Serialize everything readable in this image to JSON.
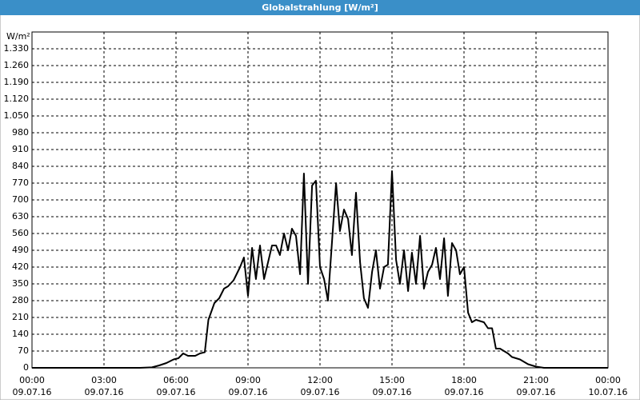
{
  "chart_data": {
    "type": "line",
    "title": "Globalstrahlung [W/m²]",
    "y_label": "W/m²",
    "series": [
      {
        "name": "Globalstrahlung",
        "color": "#000000",
        "x": [
          0,
          4.5,
          5.0,
          5.3,
          5.6,
          5.9,
          6.1,
          6.3,
          6.5,
          6.8,
          7.0,
          7.2,
          7.35,
          7.6,
          7.8,
          8.0,
          8.17,
          8.4,
          8.67,
          8.83,
          9.0,
          9.17,
          9.33,
          9.5,
          9.67,
          10.0,
          10.17,
          10.33,
          10.5,
          10.67,
          10.83,
          11.0,
          11.17,
          11.33,
          11.5,
          11.67,
          11.83,
          12.0,
          12.17,
          12.33,
          12.67,
          12.83,
          13.0,
          13.17,
          13.33,
          13.5,
          13.67,
          13.83,
          14.0,
          14.17,
          14.33,
          14.5,
          14.67,
          14.83,
          15.0,
          15.17,
          15.33,
          15.5,
          15.67,
          15.83,
          16.0,
          16.17,
          16.33,
          16.5,
          16.67,
          16.83,
          17.0,
          17.17,
          17.33,
          17.5,
          17.67,
          17.83,
          18.0,
          18.17,
          18.33,
          18.5,
          18.83,
          19.0,
          19.17,
          19.33,
          19.5,
          19.83,
          20.0,
          20.33,
          20.67,
          21.0,
          21.33,
          24
        ],
        "values": [
          0,
          0,
          2,
          10,
          20,
          35,
          40,
          60,
          50,
          50,
          60,
          65,
          200,
          270,
          290,
          330,
          340,
          365,
          420,
          460,
          300,
          500,
          370,
          510,
          370,
          510,
          510,
          470,
          560,
          490,
          580,
          550,
          390,
          810,
          350,
          760,
          780,
          420,
          370,
          280,
          770,
          570,
          660,
          620,
          470,
          730,
          440,
          290,
          250,
          400,
          490,
          330,
          420,
          430,
          820,
          450,
          350,
          490,
          320,
          480,
          350,
          550,
          330,
          400,
          430,
          500,
          370,
          540,
          300,
          520,
          490,
          390,
          420,
          230,
          190,
          200,
          190,
          165,
          165,
          80,
          80,
          60,
          45,
          35,
          15,
          5,
          0,
          0
        ]
      }
    ],
    "xlim": [
      0,
      24
    ],
    "xticks": [
      {
        "value": 0,
        "label": "00:00",
        "date": "09.07.16"
      },
      {
        "value": 3,
        "label": "03:00",
        "date": "09.07.16"
      },
      {
        "value": 6,
        "label": "06:00",
        "date": "09.07.16"
      },
      {
        "value": 9,
        "label": "09:00",
        "date": "09.07.16"
      },
      {
        "value": 12,
        "label": "12:00",
        "date": "09.07.16"
      },
      {
        "value": 15,
        "label": "15:00",
        "date": "09.07.16"
      },
      {
        "value": 18,
        "label": "18:00",
        "date": "09.07.16"
      },
      {
        "value": 21,
        "label": "21:00",
        "date": "09.07.16"
      },
      {
        "value": 24,
        "label": "00:00",
        "date": "10.07.16"
      }
    ],
    "ylim": [
      0,
      1400
    ],
    "yticks": [
      0,
      70,
      140,
      210,
      280,
      350,
      420,
      490,
      560,
      630,
      700,
      770,
      840,
      910,
      980,
      {
        "value": 1050,
        "label": "1.050"
      },
      {
        "value": 1120,
        "label": "1.120"
      },
      {
        "value": 1190,
        "label": "1.190"
      },
      {
        "value": 1260,
        "label": "1.260"
      },
      {
        "value": 1330,
        "label": "1.330"
      }
    ],
    "grid": true
  }
}
